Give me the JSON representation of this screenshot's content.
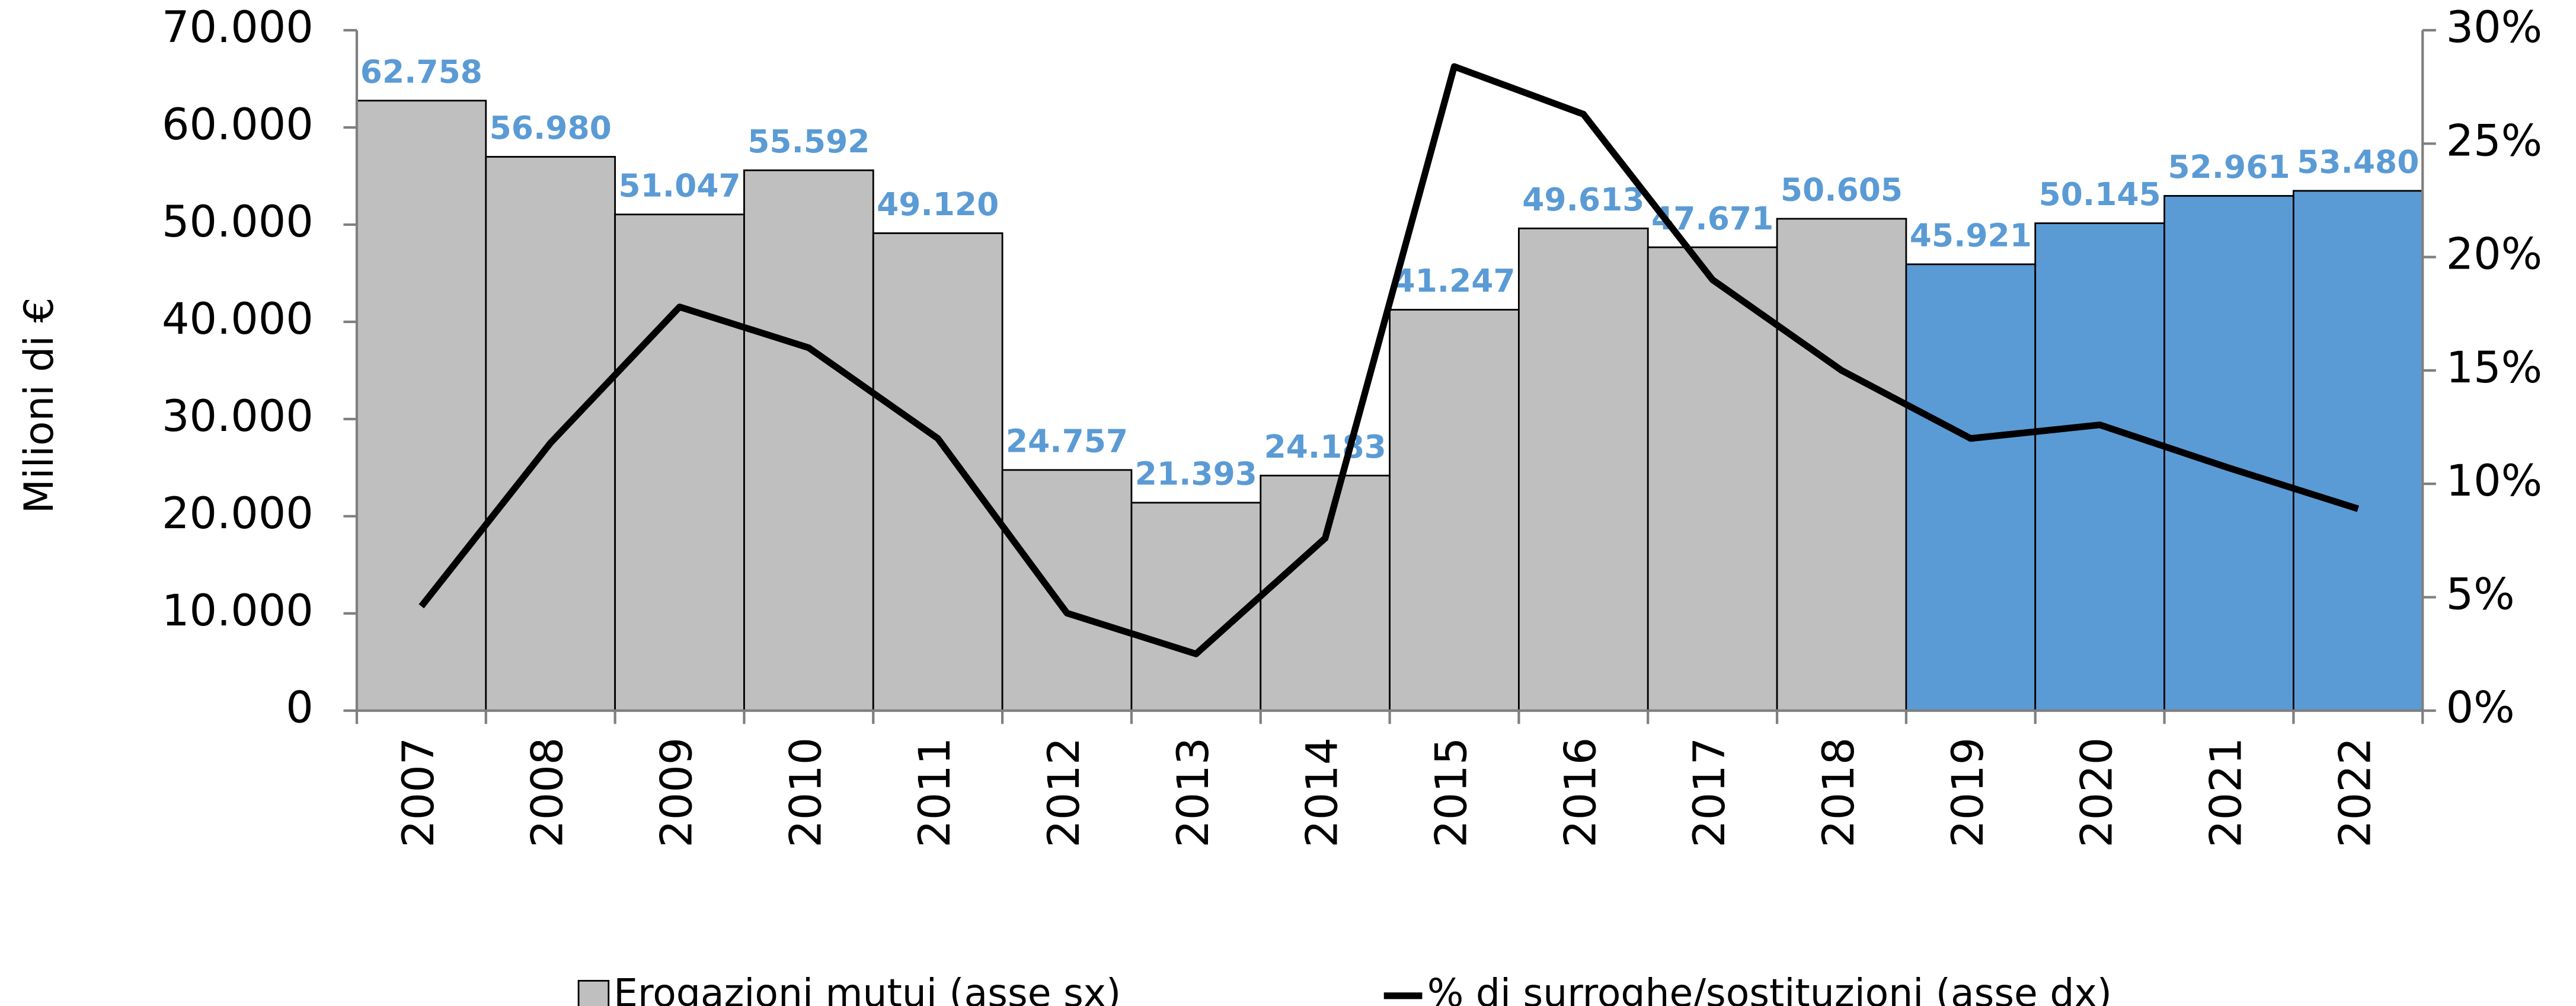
{
  "chart_data": {
    "type": "bar",
    "y_label": "Milioni di €",
    "categories": [
      "2007",
      "2008",
      "2009",
      "2010",
      "2011",
      "2012",
      "2013",
      "2014",
      "2015",
      "2016",
      "2017",
      "2018",
      "2019",
      "2020",
      "2021",
      "2022"
    ],
    "series": [
      {
        "name": "Erogazioni mutui (asse sx)",
        "type": "bar",
        "color": "#bfbfbf",
        "colors": [
          "#bfbfbf",
          "#bfbfbf",
          "#bfbfbf",
          "#bfbfbf",
          "#bfbfbf",
          "#bfbfbf",
          "#bfbfbf",
          "#bfbfbf",
          "#bfbfbf",
          "#bfbfbf",
          "#bfbfbf",
          "#bfbfbf",
          "#5b9bd5",
          "#5b9bd5",
          "#5b9bd5",
          "#5b9bd5"
        ],
        "values": [
          62758,
          56980,
          51047,
          55592,
          49120,
          24757,
          21393,
          24183,
          41247,
          49613,
          47671,
          50605,
          45921,
          50145,
          52961,
          53480
        ],
        "value_labels": [
          "62.758",
          "56.980",
          "51.047",
          "55.592",
          "49.120",
          "24.757",
          "21.393",
          "24.183",
          "41.247",
          "49.613",
          "47.671",
          "50.605",
          "45.921",
          "50.145",
          "52.961",
          "53.480"
        ],
        "value_label_color": "#5b9bd5"
      },
      {
        "name": "% di surroghe/sostituzioni (asse dx)",
        "type": "line",
        "axis": "y2",
        "color": "#000000",
        "values": [
          4.6,
          11.8,
          17.8,
          16.0,
          12.0,
          4.3,
          2.5,
          7.6,
          28.4,
          26.3,
          19.0,
          15.0,
          12.0,
          12.6,
          10.7,
          8.9
        ]
      }
    ],
    "ylim": [
      0,
      70000
    ],
    "yticks": [
      0,
      {
        "value": 10000,
        "label": "10.000"
      },
      {
        "value": 20000,
        "label": "20.000"
      },
      {
        "value": 30000,
        "label": "30.000"
      },
      {
        "value": 40000,
        "label": "40.000"
      },
      {
        "value": 50000,
        "label": "50.000"
      },
      {
        "value": 60000,
        "label": "60.000"
      },
      {
        "value": 70000,
        "label": "70.000"
      }
    ],
    "y2lim": [
      0,
      30
    ],
    "y2ticks": [
      {
        "value": 0,
        "label": "0%"
      },
      {
        "value": 5,
        "label": "5%"
      },
      {
        "value": 10,
        "label": "10%"
      },
      {
        "value": 15,
        "label": "15%"
      },
      {
        "value": 20,
        "label": "20%"
      },
      {
        "value": 25,
        "label": "25%"
      },
      {
        "value": 30,
        "label": "30%"
      }
    ],
    "grid": false
  }
}
